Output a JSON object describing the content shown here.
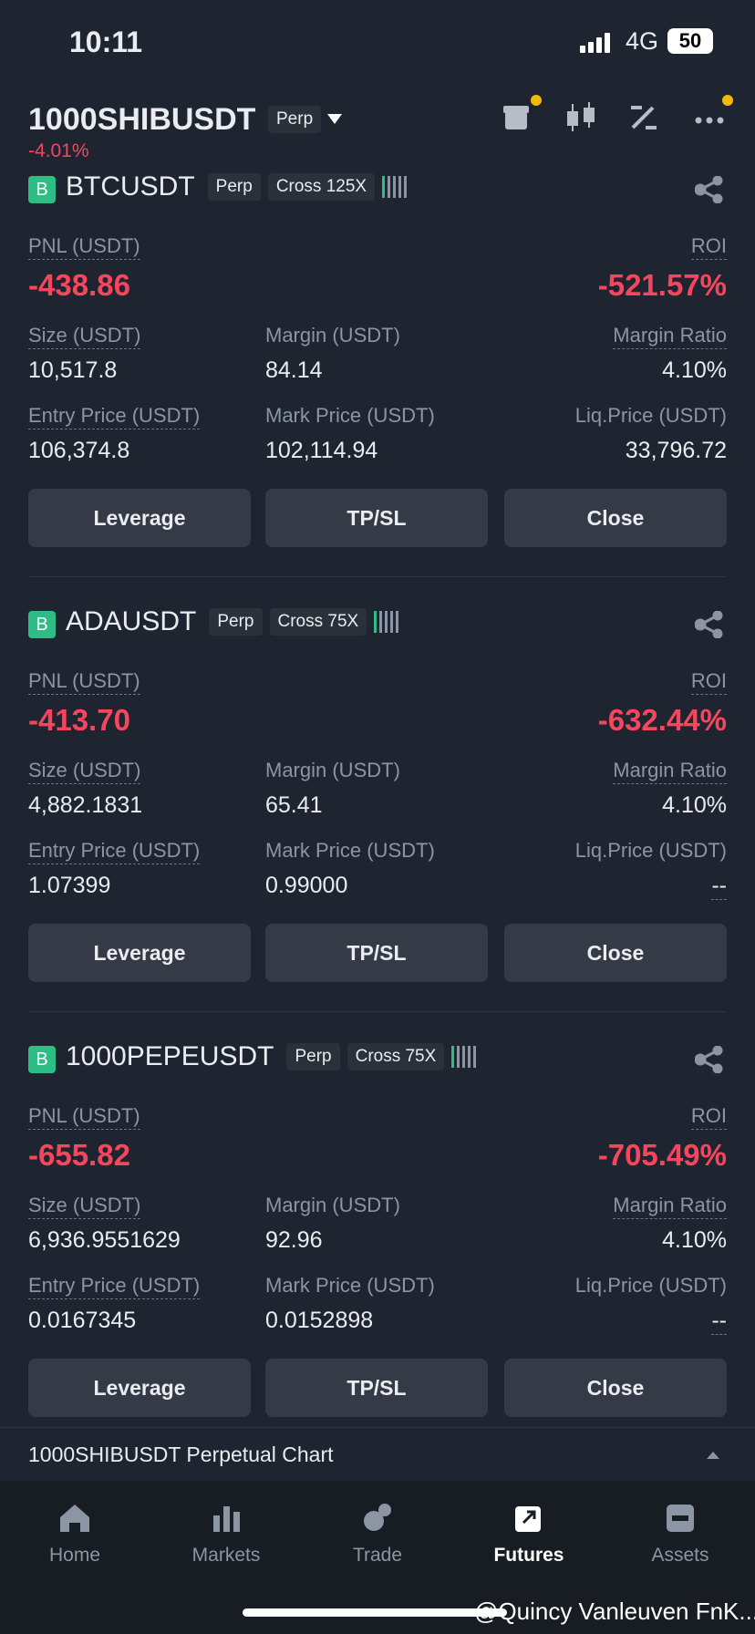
{
  "status_bar": {
    "time": "10:11",
    "network": "4G",
    "battery": "50"
  },
  "header": {
    "symbol": "1000SHIBUSDT",
    "badge": "Perp",
    "change": "-4.01%"
  },
  "positions": [
    {
      "side": "B",
      "symbol": "BTCUSDT",
      "type": "Perp",
      "margin_mode": "Cross 125X",
      "pnl_label": "PNL (USDT)",
      "pnl": "-438.86",
      "roi_label": "ROI",
      "roi": "-521.57%",
      "size_label": "Size (USDT)",
      "size": "10,517.8",
      "margin_label": "Margin (USDT)",
      "margin": "84.14",
      "margin_ratio_label": "Margin Ratio",
      "margin_ratio": "4.10%",
      "entry_label": "Entry Price (USDT)",
      "entry": "106,374.8",
      "mark_label": "Mark Price (USDT)",
      "mark": "102,114.94",
      "liq_label": "Liq.Price (USDT)",
      "liq": "33,796.72",
      "buttons": [
        "Leverage",
        "TP/SL",
        "Close"
      ]
    },
    {
      "side": "B",
      "symbol": "ADAUSDT",
      "type": "Perp",
      "margin_mode": "Cross 75X",
      "pnl_label": "PNL (USDT)",
      "pnl": "-413.70",
      "roi_label": "ROI",
      "roi": "-632.44%",
      "size_label": "Size (USDT)",
      "size": "4,882.1831",
      "margin_label": "Margin (USDT)",
      "margin": "65.41",
      "margin_ratio_label": "Margin Ratio",
      "margin_ratio": "4.10%",
      "entry_label": "Entry Price (USDT)",
      "entry": "1.07399",
      "mark_label": "Mark Price (USDT)",
      "mark": "0.99000",
      "liq_label": "Liq.Price (USDT)",
      "liq": "--",
      "buttons": [
        "Leverage",
        "TP/SL",
        "Close"
      ]
    },
    {
      "side": "B",
      "symbol": "1000PEPEUSDT",
      "type": "Perp",
      "margin_mode": "Cross 75X",
      "pnl_label": "PNL (USDT)",
      "pnl": "-655.82",
      "roi_label": "ROI",
      "roi": "-705.49%",
      "size_label": "Size (USDT)",
      "size": "6,936.9551629",
      "margin_label": "Margin (USDT)",
      "margin": "92.96",
      "margin_ratio_label": "Margin Ratio",
      "margin_ratio": "4.10%",
      "entry_label": "Entry Price (USDT)",
      "entry": "0.0167345",
      "mark_label": "Mark Price (USDT)",
      "mark": "0.0152898",
      "liq_label": "Liq.Price (USDT)",
      "liq": "--",
      "buttons": [
        "Leverage",
        "TP/SL",
        "Close"
      ]
    }
  ],
  "chart_bar": {
    "label": "1000SHIBUSDT Perpetual  Chart"
  },
  "nav": {
    "items": [
      "Home",
      "Markets",
      "Trade",
      "Futures",
      "Assets"
    ],
    "active": 3
  },
  "watermark": "@Quincy Vanleuven FnK..."
}
